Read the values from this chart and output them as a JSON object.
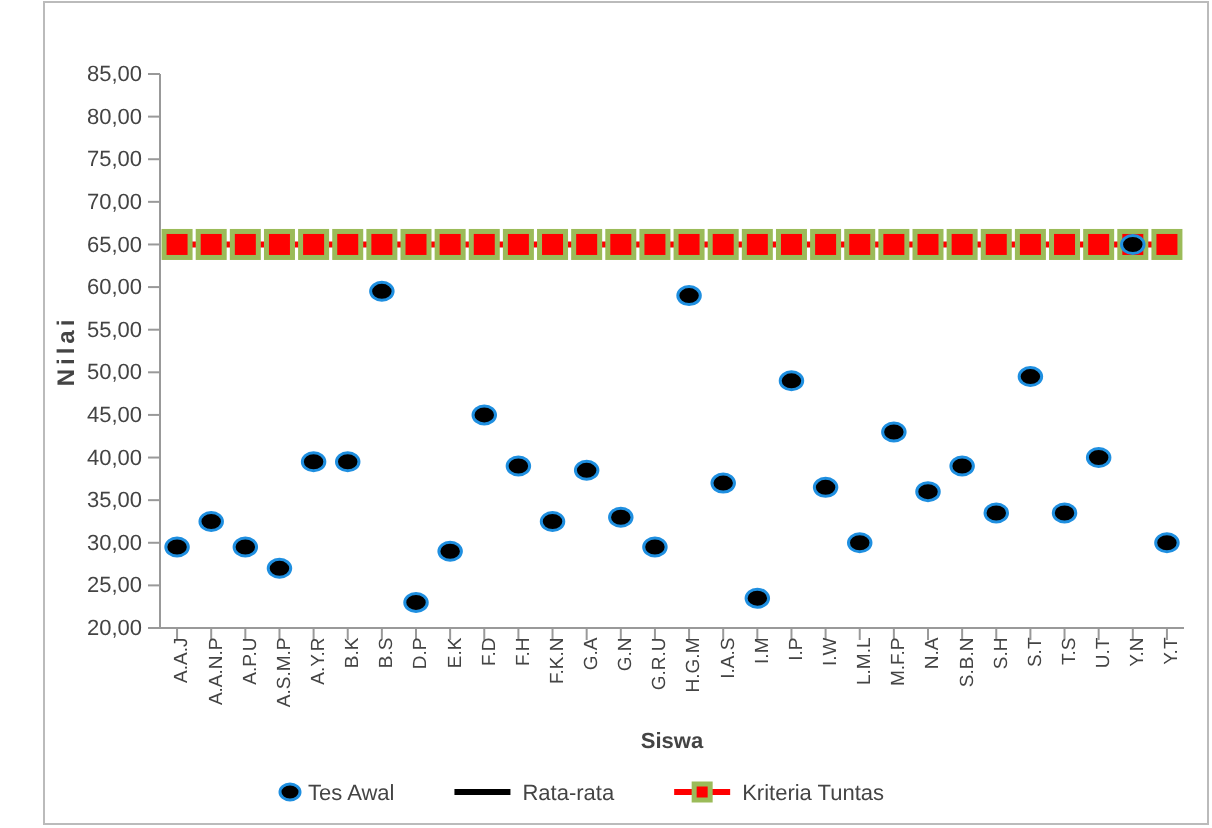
{
  "chart_data": {
    "type": "scatter",
    "xlabel": "Siswa",
    "ylabel": "Nilai",
    "categories": [
      "A.A.J",
      "A.A.N.P",
      "A.P.U",
      "A.S.M.P",
      "A.Y.R",
      "B.K",
      "B.S",
      "D.P",
      "E.K",
      "F.D",
      "F.H",
      "F.K.N",
      "G.A",
      "G.N",
      "G.R.U",
      "H.G.M",
      "I.A.S",
      "I.M",
      "I.P",
      "I.W",
      "L.M.L",
      "M.F.P",
      "N.A",
      "S.B.N",
      "S.H",
      "S.T",
      "T.S",
      "U.T",
      "Y.N",
      "Y.T"
    ],
    "series": [
      {
        "name": "Tes Awal",
        "marker": "circle",
        "color": "#000000",
        "values": [
          29.5,
          32.5,
          29.5,
          27,
          39.5,
          39.5,
          59.5,
          23,
          29,
          45,
          39,
          32.5,
          38.5,
          33,
          29.5,
          59,
          37,
          23.5,
          49,
          36.5,
          30,
          43,
          36,
          39,
          33.5,
          49.5,
          33.5,
          40,
          65,
          30
        ]
      },
      {
        "name": "Rata-rata",
        "type": "line",
        "marker": "none",
        "color": "#000000",
        "values": [
          null,
          null,
          null,
          null,
          null,
          null,
          null,
          null,
          null,
          null,
          null,
          null,
          null,
          null,
          null,
          null,
          null,
          null,
          null,
          null,
          null,
          null,
          null,
          null,
          null,
          null,
          null,
          null,
          null,
          null
        ]
      },
      {
        "name": "Kriteria Tuntas",
        "type": "line",
        "marker": "square",
        "color": "#ff0000",
        "values": [
          65,
          65,
          65,
          65,
          65,
          65,
          65,
          65,
          65,
          65,
          65,
          65,
          65,
          65,
          65,
          65,
          65,
          65,
          65,
          65,
          65,
          65,
          65,
          65,
          65,
          65,
          65,
          65,
          65,
          65
        ]
      }
    ],
    "ylim": [
      20,
      85
    ],
    "yticks": [
      {
        "value": 20,
        "label": "20,00"
      },
      {
        "value": 25,
        "label": "25,00"
      },
      {
        "value": 30,
        "label": "30,00"
      },
      {
        "value": 35,
        "label": "35,00"
      },
      {
        "value": 40,
        "label": "40,00"
      },
      {
        "value": 45,
        "label": "45,00"
      },
      {
        "value": 50,
        "label": "50,00"
      },
      {
        "value": 55,
        "label": "55,00"
      },
      {
        "value": 60,
        "label": "60,00"
      },
      {
        "value": 65,
        "label": "65,00"
      },
      {
        "value": 70,
        "label": "70,00"
      },
      {
        "value": 75,
        "label": "75,00"
      },
      {
        "value": 80,
        "label": "80,00"
      },
      {
        "value": 85,
        "label": "85,00"
      }
    ],
    "grid": false,
    "legend": "bottom"
  }
}
